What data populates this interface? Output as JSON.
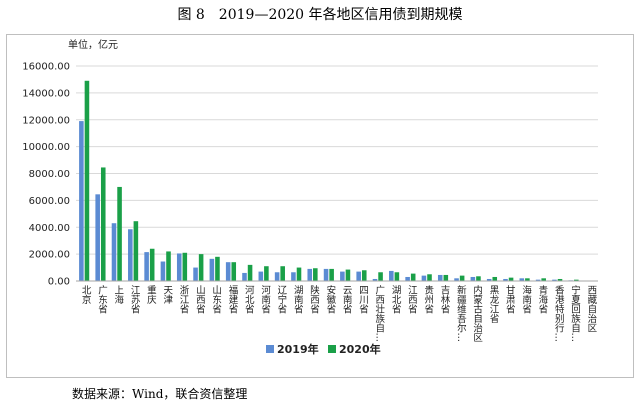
{
  "figure_title": "图 8　2019—2020 年各地区信用债到期规模",
  "source_note": "数据来源：Wind，联合资信整理",
  "colors": {
    "y2019": "#5b8bd3",
    "y2020": "#1aa048",
    "grid": "#d9d9d9",
    "axis": "#a6a6a6"
  },
  "chart_data": {
    "type": "bar",
    "title": "",
    "unit_label": "单位，亿元",
    "xlabel": "",
    "ylabel": "",
    "ylim": [
      0,
      16000
    ],
    "yticks": [
      "0.00",
      "2000.00",
      "4000.00",
      "6000.00",
      "8000.00",
      "10000.00",
      "12000.00",
      "14000.00",
      "16000.00"
    ],
    "grid": true,
    "legend_position": "bottom",
    "categories": [
      "北京",
      "广东省",
      "上海",
      "江苏省",
      "重庆",
      "天津",
      "浙江省",
      "山西省",
      "山东省",
      "福建省",
      "河北省",
      "河南省",
      "辽宁省",
      "湖南省",
      "陕西省",
      "安徽省",
      "云南省",
      "四川省",
      "广西壮族自…",
      "湖北省",
      "江西省",
      "贵州省",
      "吉林省",
      "新疆维吾尔…",
      "内蒙古自治区",
      "黑龙江省",
      "甘肃省",
      "海南省",
      "青海省",
      "香港特别行…",
      "宁夏回族自…",
      "西藏自治区"
    ],
    "series": [
      {
        "name": "2019年",
        "values": [
          11900,
          6450,
          4300,
          3850,
          2150,
          1450,
          2050,
          1000,
          1650,
          1400,
          600,
          700,
          650,
          650,
          900,
          900,
          700,
          700,
          150,
          750,
          300,
          400,
          450,
          200,
          300,
          150,
          150,
          200,
          100,
          100,
          50,
          0
        ]
      },
      {
        "name": "2020年",
        "values": [
          14900,
          8450,
          7000,
          4450,
          2400,
          2200,
          2100,
          2000,
          1800,
          1400,
          1200,
          1100,
          1100,
          1000,
          950,
          900,
          850,
          800,
          650,
          650,
          550,
          500,
          450,
          400,
          350,
          300,
          250,
          200,
          200,
          150,
          100,
          20
        ]
      }
    ]
  }
}
